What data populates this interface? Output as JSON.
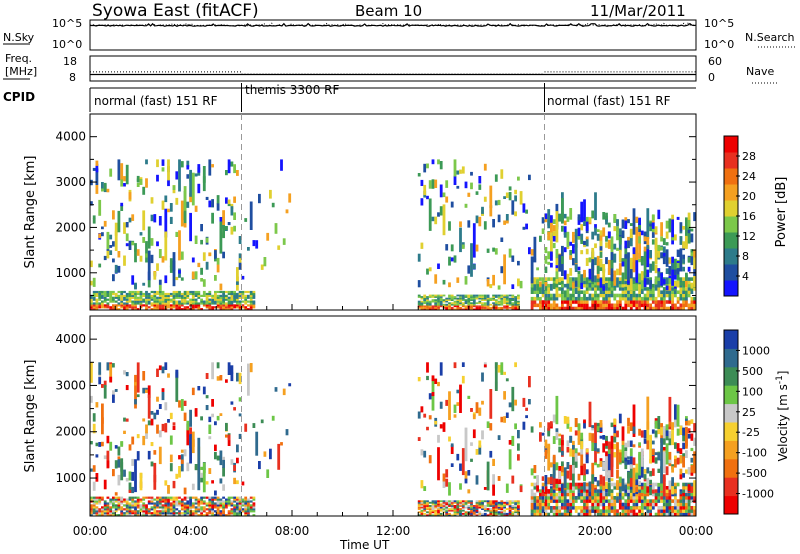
{
  "header": {
    "title": "Syowa East (fitACF)",
    "beam": "Beam 10",
    "date": "11/Mar/2011"
  },
  "chart_data": [
    {
      "type": "line",
      "panel": "noise",
      "left_label": "N.Sky",
      "right_label": "N.Search",
      "left_ticks": [
        "10^5",
        "10^0"
      ],
      "right_ticks": [
        "10^5",
        "10^0"
      ],
      "scale": "log",
      "ylim": [
        1,
        100000
      ],
      "series": [
        {
          "name": "N.Sky",
          "style": "solid",
          "level": 20000
        },
        {
          "name": "N.Search",
          "style": "dotted",
          "level": 25000
        }
      ]
    },
    {
      "type": "line",
      "panel": "frequency",
      "left_label_1": "Freq.",
      "left_label_2": "[MHz]",
      "right_label": "Nave",
      "left_ticks": [
        18,
        8
      ],
      "right_ticks": [
        60,
        0
      ],
      "ylim": [
        8,
        18
      ],
      "series": [
        {
          "name": "Freq.",
          "style": "solid",
          "segments": [
            {
              "from": 0,
              "to": 24,
              "value": 10.5
            }
          ]
        },
        {
          "name": "Nave",
          "style": "dotted",
          "segments": [
            {
              "from": 0,
              "to": 6,
              "value": 22
            },
            {
              "from": 6,
              "to": 18,
              "value": 16
            },
            {
              "from": 18,
              "to": 24,
              "value": 22
            }
          ]
        }
      ]
    },
    {
      "type": "table",
      "panel": "cpid",
      "label": "CPID",
      "segments": [
        {
          "label": "normal (fast) 151 RF",
          "start_hour": 0,
          "end_hour": 6
        },
        {
          "label": "themis 3300 RF",
          "start_hour": 6,
          "end_hour": 18
        },
        {
          "label": "normal (fast) 151 RF",
          "start_hour": 18,
          "end_hour": 24
        }
      ]
    },
    {
      "type": "heatmap",
      "panel": "power",
      "ylabel": "Slant Range [km]",
      "yticks": [
        1000,
        2000,
        3000,
        4000
      ],
      "ylim": [
        180,
        4500
      ],
      "colorbar_label": "Power [dB]",
      "colorbar_ticks": [
        "4",
        "8",
        "12",
        "16",
        "20",
        "24",
        "28"
      ],
      "colors": [
        "#1414ff",
        "#1f4ea0",
        "#2d7b8a",
        "#3c9a56",
        "#7cc84a",
        "#e0d030",
        "#f5a020",
        "#f07010",
        "#e83020",
        "#ee0000"
      ]
    },
    {
      "type": "heatmap",
      "panel": "velocity",
      "ylabel": "Slant Range [km]",
      "yticks": [
        1000,
        2000,
        3000,
        4000
      ],
      "ylim": [
        180,
        4500
      ],
      "colorbar_label": "Velocity [m s-1]",
      "colorbar_ticks": [
        "1000",
        "500",
        "100",
        "25",
        "-25",
        "-100",
        "-500",
        "-1000"
      ],
      "colors": [
        "#1a3ea8",
        "#2f6a8e",
        "#3c8c55",
        "#6cc646",
        "#c8c8c8",
        "#f6d030",
        "#f5a020",
        "#f07010",
        "#e83020",
        "#ee0000"
      ]
    }
  ],
  "xaxis": {
    "label": "Time UT",
    "ticks": [
      "00:00",
      "04:00",
      "08:00",
      "12:00",
      "16:00",
      "20:00",
      "00:00"
    ]
  }
}
